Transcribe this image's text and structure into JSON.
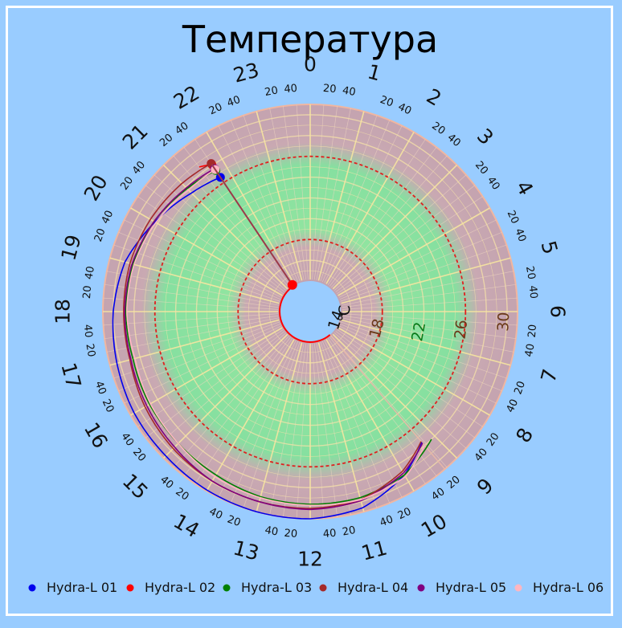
{
  "chart_data": {
    "type": "polar-line",
    "title": "Температура",
    "unit": "℃",
    "hours": [
      "0",
      "1",
      "2",
      "3",
      "4",
      "5",
      "6",
      "7",
      "8",
      "9",
      "10",
      "11",
      "12",
      "13",
      "14",
      "15",
      "16",
      "17",
      "18",
      "19",
      "20",
      "21",
      "22",
      "23"
    ],
    "hour_tick_labels": [
      "20",
      "40"
    ],
    "radial_ticks": [
      {
        "value": 14,
        "label": "14"
      },
      {
        "value": 18,
        "label": "18"
      },
      {
        "value": 22,
        "label": "22"
      },
      {
        "value": 26,
        "label": "26"
      },
      {
        "value": 30,
        "label": "30"
      }
    ],
    "radial_range": [
      14,
      31
    ],
    "comfort_band": [
      19,
      25
    ],
    "reference_lines": [
      18,
      26
    ],
    "start_hour": 9.3,
    "current_hour": 21.75,
    "series": [
      {
        "name": "Hydra-L 01",
        "color": "#0000ee",
        "points": [
          [
            9.3,
            27.6
          ],
          [
            10,
            29.2
          ],
          [
            11,
            30.6
          ],
          [
            12,
            31.0
          ],
          [
            13,
            31.0
          ],
          [
            14,
            30.9
          ],
          [
            15,
            30.7
          ],
          [
            16,
            30.6
          ],
          [
            17,
            30.3
          ],
          [
            18,
            30.0
          ],
          [
            19,
            29.5
          ],
          [
            20,
            28.3
          ],
          [
            21,
            27.2
          ],
          [
            21.75,
            26.6
          ]
        ]
      },
      {
        "name": "Hydra-L 02",
        "color": "#ff0000",
        "points": [
          [
            21.5,
            28.6
          ],
          [
            21.75,
            28.1
          ]
        ]
      },
      {
        "name": "Hydra-L 03",
        "color": "#008000",
        "points": [
          [
            9.1,
            28.0
          ],
          [
            10,
            29.2
          ],
          [
            11,
            29.6
          ],
          [
            12,
            29.6
          ],
          [
            13,
            29.5
          ],
          [
            14,
            29.2
          ],
          [
            15,
            29.0
          ],
          [
            16,
            28.9
          ],
          [
            17,
            28.7
          ],
          [
            18,
            28.8
          ],
          [
            19,
            28.7
          ],
          [
            20,
            28.4
          ],
          [
            21,
            27.8
          ],
          [
            21.75,
            27.4
          ]
        ]
      },
      {
        "name": "Hydra-L 04",
        "color": "#a52a2a",
        "points": [
          [
            9.3,
            27.5
          ],
          [
            10,
            28.8
          ],
          [
            11,
            29.8
          ],
          [
            12,
            30.0
          ],
          [
            13,
            30.0
          ],
          [
            14,
            29.9
          ],
          [
            15,
            29.7
          ],
          [
            16,
            29.4
          ],
          [
            17,
            29.0
          ],
          [
            18,
            29.0
          ],
          [
            19,
            29.0
          ],
          [
            20,
            28.8
          ],
          [
            21,
            28.5
          ],
          [
            21.75,
            28.2
          ]
        ]
      },
      {
        "name": "Hydra-L 05",
        "color": "#800080",
        "points": [
          [
            9.3,
            27.7
          ],
          [
            10,
            29.0
          ],
          [
            11,
            29.9
          ],
          [
            12,
            30.1
          ],
          [
            13,
            30.0
          ],
          [
            14,
            29.9
          ],
          [
            15,
            29.5
          ],
          [
            16,
            29.2
          ],
          [
            17,
            28.9
          ],
          [
            18,
            28.9
          ],
          [
            19,
            28.8
          ],
          [
            20,
            28.4
          ],
          [
            21,
            27.9
          ],
          [
            21.75,
            27.6
          ]
        ]
      },
      {
        "name": "Hydra-L 06",
        "color": "#ffb6c1",
        "points": [
          [
            9.3,
            28.0
          ],
          [
            10,
            29.4
          ],
          [
            11,
            29.8
          ],
          [
            12,
            29.7
          ],
          [
            13,
            29.6
          ],
          [
            14,
            29.4
          ],
          [
            15,
            29.0
          ],
          [
            16,
            28.8
          ],
          [
            17,
            28.5
          ],
          [
            18,
            28.7
          ],
          [
            19,
            28.6
          ],
          [
            20,
            28.2
          ],
          [
            21,
            27.6
          ],
          [
            21.75,
            27.5
          ]
        ]
      }
    ],
    "needle_series": "Hydra-L 02",
    "legend": {
      "position": "bottom"
    }
  }
}
